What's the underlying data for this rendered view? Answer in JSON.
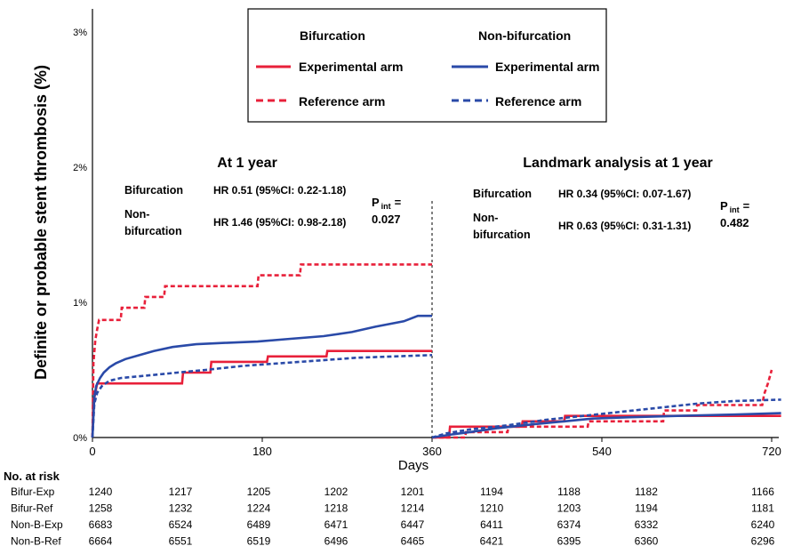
{
  "chart_data": {
    "type": "line",
    "ylabel": "Definite or probable stent thrombosis (%)",
    "xlabel": "Days",
    "x_ticks": [
      0,
      180,
      360,
      540,
      720
    ],
    "y_ticks": [
      "0%",
      "1%",
      "2%",
      "3%"
    ],
    "xlim": [
      0,
      730
    ],
    "ylim": [
      0,
      3.1
    ],
    "landmark_day": 360,
    "legend": {
      "group_headers": [
        "Bifurcation",
        "Non-bifurcation"
      ],
      "experimental_label": "Experimental arm",
      "reference_label": "Reference arm"
    },
    "panels": [
      {
        "title": "At 1 year",
        "rows": [
          {
            "group": "Bifurcation",
            "hr": "HR 0.51 (95%CI: 0.22-1.18)"
          },
          {
            "group": "Non-\nbifurcation",
            "hr": "HR 1.46 (95%CI: 0.98-2.18)"
          }
        ],
        "p_int_label": "P",
        "p_int_sub": "int",
        "p_int_suffix": "=",
        "p_int_value": "0.027"
      },
      {
        "title": "Landmark analysis at 1 year",
        "rows": [
          {
            "group": "Bifurcation",
            "hr": "HR 0.34 (95%CI: 0.07-1.67)"
          },
          {
            "group": "Non-\nbifurcation",
            "hr": "HR 0.63 (95%CI: 0.31-1.31)"
          }
        ],
        "p_int_label": "P",
        "p_int_sub": "int",
        "p_int_suffix": "=",
        "p_int_value": "0.482"
      }
    ],
    "series": [
      {
        "name": "Bifurcation Experimental arm",
        "color": "#e8203a",
        "dash": "solid",
        "segments": [
          [
            [
              0,
              0
            ],
            [
              1,
              0.26
            ],
            [
              3,
              0.33
            ],
            [
              5,
              0.4
            ],
            [
              95,
              0.4
            ],
            [
              96,
              0.48
            ],
            [
              125,
              0.48
            ],
            [
              126,
              0.56
            ],
            [
              185,
              0.56
            ],
            [
              186,
              0.6
            ],
            [
              248,
              0.6
            ],
            [
              249,
              0.64
            ],
            [
              360,
              0.64
            ]
          ],
          [
            [
              360,
              0
            ],
            [
              378,
              0
            ],
            [
              379,
              0.08
            ],
            [
              410,
              0.08
            ],
            [
              455,
              0.08
            ],
            [
              456,
              0.12
            ],
            [
              500,
              0.12
            ],
            [
              501,
              0.16
            ],
            [
              620,
              0.16
            ],
            [
              621,
              0.16
            ],
            [
              730,
              0.16
            ]
          ]
        ]
      },
      {
        "name": "Bifurcation Reference arm",
        "color": "#e8203a",
        "dash": "dashed",
        "segments": [
          [
            [
              0,
              0
            ],
            [
              1,
              0.55
            ],
            [
              3,
              0.72
            ],
            [
              5,
              0.8
            ],
            [
              7,
              0.87
            ],
            [
              30,
              0.87
            ],
            [
              31,
              0.96
            ],
            [
              55,
              0.96
            ],
            [
              56,
              1.04
            ],
            [
              76,
              1.04
            ],
            [
              77,
              1.12
            ],
            [
              175,
              1.12
            ],
            [
              176,
              1.2
            ],
            [
              220,
              1.2
            ],
            [
              221,
              1.28
            ],
            [
              360,
              1.28
            ]
          ],
          [
            [
              360,
              0
            ],
            [
              395,
              0
            ],
            [
              396,
              0.04
            ],
            [
              440,
              0.04
            ],
            [
              441,
              0.08
            ],
            [
              525,
              0.08
            ],
            [
              526,
              0.12
            ],
            [
              605,
              0.12
            ],
            [
              606,
              0.2
            ],
            [
              640,
              0.2
            ],
            [
              641,
              0.24
            ],
            [
              710,
              0.24
            ],
            [
              712,
              0.32
            ],
            [
              716,
              0.4
            ],
            [
              720,
              0.5
            ]
          ]
        ]
      },
      {
        "name": "Non-bifurcation Experimental arm",
        "color": "#2a4aa8",
        "dash": "solid",
        "segments": [
          [
            [
              0,
              0
            ],
            [
              2,
              0.3
            ],
            [
              4,
              0.38
            ],
            [
              8,
              0.44
            ],
            [
              12,
              0.48
            ],
            [
              18,
              0.52
            ],
            [
              25,
              0.55
            ],
            [
              35,
              0.58
            ],
            [
              50,
              0.61
            ],
            [
              65,
              0.64
            ],
            [
              85,
              0.67
            ],
            [
              110,
              0.69
            ],
            [
              140,
              0.7
            ],
            [
              175,
              0.71
            ],
            [
              210,
              0.73
            ],
            [
              245,
              0.75
            ],
            [
              275,
              0.78
            ],
            [
              300,
              0.82
            ],
            [
              330,
              0.86
            ],
            [
              345,
              0.9
            ],
            [
              360,
              0.9
            ]
          ],
          [
            [
              360,
              0
            ],
            [
              378,
              0.02
            ],
            [
              400,
              0.04
            ],
            [
              430,
              0.07
            ],
            [
              470,
              0.1
            ],
            [
              500,
              0.12
            ],
            [
              530,
              0.14
            ],
            [
              570,
              0.15
            ],
            [
              620,
              0.16
            ],
            [
              680,
              0.17
            ],
            [
              730,
              0.18
            ]
          ]
        ]
      },
      {
        "name": "Non-bifurcation Reference arm",
        "color": "#2a4aa8",
        "dash": "dashed",
        "segments": [
          [
            [
              0,
              0
            ],
            [
              2,
              0.25
            ],
            [
              5,
              0.33
            ],
            [
              10,
              0.38
            ],
            [
              18,
              0.42
            ],
            [
              30,
              0.44
            ],
            [
              60,
              0.46
            ],
            [
              90,
              0.48
            ],
            [
              120,
              0.5
            ],
            [
              160,
              0.53
            ],
            [
              200,
              0.55
            ],
            [
              240,
              0.57
            ],
            [
              280,
              0.59
            ],
            [
              320,
              0.6
            ],
            [
              360,
              0.61
            ]
          ],
          [
            [
              360,
              0
            ],
            [
              375,
              0.03
            ],
            [
              400,
              0.06
            ],
            [
              440,
              0.09
            ],
            [
              480,
              0.13
            ],
            [
              520,
              0.16
            ],
            [
              560,
              0.19
            ],
            [
              600,
              0.22
            ],
            [
              640,
              0.25
            ],
            [
              680,
              0.27
            ],
            [
              730,
              0.28
            ]
          ]
        ]
      }
    ]
  },
  "risk_table": {
    "title": "No. at risk",
    "rows": [
      {
        "label": "Bifur-Exp",
        "values": [
          "1240",
          "1217",
          "1205",
          "1202",
          "1201",
          "1194",
          "1188",
          "1182",
          "1166"
        ]
      },
      {
        "label": "Bifur-Ref",
        "values": [
          "1258",
          "1232",
          "1224",
          "1218",
          "1214",
          "1210",
          "1203",
          "1194",
          "1181"
        ]
      },
      {
        "label": "Non-B-Exp",
        "values": [
          "6683",
          "6524",
          "6489",
          "6471",
          "6447",
          "6411",
          "6374",
          "6332",
          "6240"
        ]
      },
      {
        "label": "Non-B-Ref",
        "values": [
          "6664",
          "6551",
          "6519",
          "6496",
          "6465",
          "6421",
          "6395",
          "6360",
          "6296"
        ]
      }
    ]
  }
}
